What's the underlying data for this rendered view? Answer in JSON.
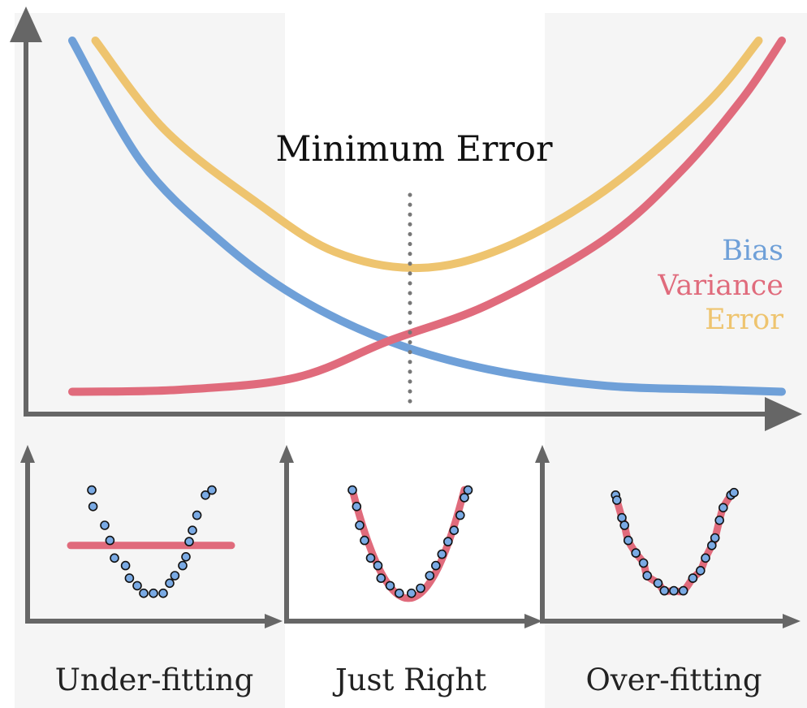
{
  "title": "Minimum Error",
  "legend": [
    {
      "label": "Bias",
      "color": "#6fa0d8"
    },
    {
      "label": "Variance",
      "color": "#e06b7c"
    },
    {
      "label": "Error",
      "color": "#eec46f"
    }
  ],
  "colors": {
    "bias": "#6fa0d8",
    "variance": "#e06b7c",
    "error": "#eec46f",
    "axis": "#666666",
    "points": "#7aaae4",
    "panel_background": "#f5f5f5"
  },
  "panels": [
    {
      "key": "under",
      "label": "Under-fitting"
    },
    {
      "key": "right",
      "label": "Just Right"
    },
    {
      "key": "over",
      "label": "Over-fitting"
    }
  ],
  "chart_data": [
    {
      "type": "line",
      "title": "Minimum Error",
      "xlabel": "",
      "ylabel": "",
      "xlim": [
        0,
        1
      ],
      "ylim": [
        0,
        1
      ],
      "series": [
        {
          "name": "Bias",
          "x": [
            0.06,
            0.15,
            0.25,
            0.35,
            0.47,
            0.6,
            0.75,
            0.9,
            0.98
          ],
          "y": [
            0.92,
            0.62,
            0.43,
            0.29,
            0.18,
            0.11,
            0.07,
            0.06,
            0.055
          ]
        },
        {
          "name": "Variance",
          "x": [
            0.06,
            0.2,
            0.35,
            0.47,
            0.6,
            0.75,
            0.85,
            0.93,
            0.98
          ],
          "y": [
            0.055,
            0.06,
            0.09,
            0.18,
            0.27,
            0.43,
            0.6,
            0.78,
            0.92
          ]
        },
        {
          "name": "Error",
          "x": [
            0.09,
            0.18,
            0.3,
            0.4,
            0.51,
            0.62,
            0.75,
            0.88,
            0.95
          ],
          "y": [
            0.92,
            0.7,
            0.52,
            0.4,
            0.36,
            0.41,
            0.55,
            0.76,
            0.92
          ]
        }
      ],
      "annotations": [
        {
          "text": "Minimum Error",
          "x": 0.51
        }
      ],
      "grid": false,
      "legend_position": "right"
    },
    {
      "type": "scatter",
      "title": "Under-fitting",
      "fit": "horizontal line",
      "points": [
        [
          -0.9,
          0.88
        ],
        [
          -0.88,
          0.75
        ],
        [
          -0.7,
          0.6
        ],
        [
          -0.62,
          0.48
        ],
        [
          -0.55,
          0.34
        ],
        [
          -0.38,
          0.28
        ],
        [
          -0.32,
          0.18
        ],
        [
          -0.2,
          0.12
        ],
        [
          -0.1,
          0.06
        ],
        [
          0.05,
          0.06
        ],
        [
          0.2,
          0.06
        ],
        [
          0.3,
          0.14
        ],
        [
          0.38,
          0.2
        ],
        [
          0.5,
          0.28
        ],
        [
          0.55,
          0.35
        ],
        [
          0.6,
          0.47
        ],
        [
          0.65,
          0.56
        ],
        [
          0.72,
          0.68
        ],
        [
          0.85,
          0.84
        ],
        [
          0.95,
          0.88
        ]
      ],
      "fit_y": 0.44
    },
    {
      "type": "scatter",
      "title": "Just Right",
      "fit": "quadratic",
      "points": [
        [
          -0.92,
          0.88
        ],
        [
          -0.85,
          0.75
        ],
        [
          -0.8,
          0.6
        ],
        [
          -0.72,
          0.48
        ],
        [
          -0.62,
          0.34
        ],
        [
          -0.5,
          0.28
        ],
        [
          -0.45,
          0.18
        ],
        [
          -0.3,
          0.12
        ],
        [
          -0.15,
          0.06
        ],
        [
          0.05,
          0.06
        ],
        [
          0.2,
          0.1
        ],
        [
          0.35,
          0.2
        ],
        [
          0.45,
          0.28
        ],
        [
          0.55,
          0.37
        ],
        [
          0.65,
          0.47
        ],
        [
          0.75,
          0.56
        ],
        [
          0.85,
          0.68
        ],
        [
          0.92,
          0.82
        ],
        [
          0.98,
          0.88
        ]
      ]
    },
    {
      "type": "scatter",
      "title": "Over-fitting",
      "fit": "wiggly interpolation",
      "points": [
        [
          -0.92,
          0.84
        ],
        [
          -0.9,
          0.8
        ],
        [
          -0.82,
          0.66
        ],
        [
          -0.78,
          0.6
        ],
        [
          -0.72,
          0.48
        ],
        [
          -0.6,
          0.38
        ],
        [
          -0.48,
          0.3
        ],
        [
          -0.42,
          0.2
        ],
        [
          -0.25,
          0.14
        ],
        [
          -0.15,
          0.08
        ],
        [
          0.0,
          0.08
        ],
        [
          0.15,
          0.08
        ],
        [
          0.3,
          0.18
        ],
        [
          0.42,
          0.24
        ],
        [
          0.5,
          0.34
        ],
        [
          0.6,
          0.44
        ],
        [
          0.65,
          0.5
        ],
        [
          0.72,
          0.64
        ],
        [
          0.78,
          0.74
        ],
        [
          0.9,
          0.84
        ],
        [
          0.95,
          0.86
        ]
      ]
    }
  ]
}
